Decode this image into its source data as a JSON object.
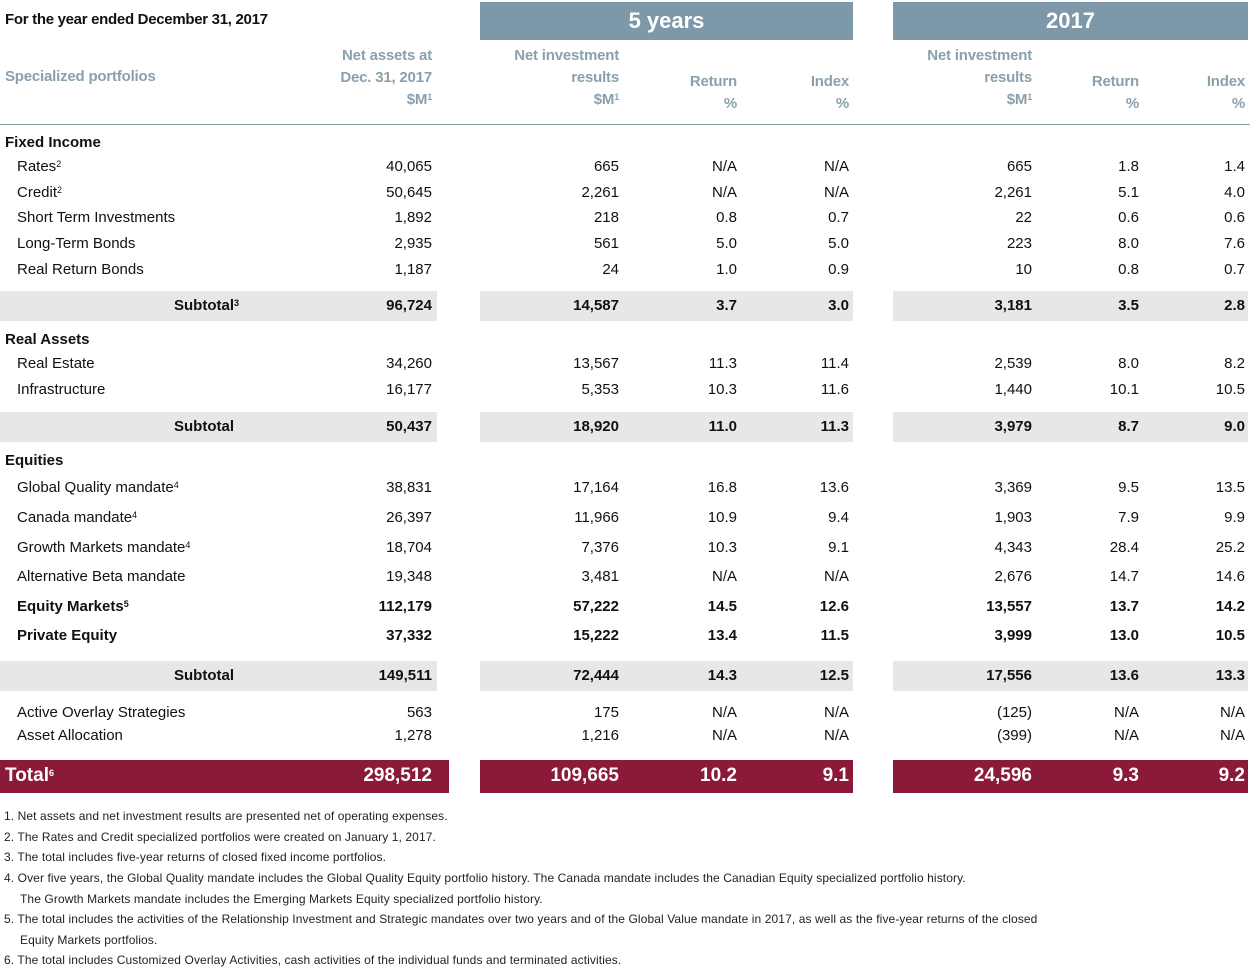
{
  "title": "For the year ended December 31, 2017",
  "bands": {
    "five_years": "5 years",
    "year_2017": "2017"
  },
  "colors": {
    "band": "#7d98a8",
    "subtotal_bg": "#e6e7e8",
    "total_bg": "#8b1a38",
    "header_text": "#8aa0ad"
  },
  "headers": {
    "portfolios": "Specialized portfolios",
    "net_assets": [
      "Net assets at",
      "Dec. 31, 2017",
      "$M"
    ],
    "net_assets_sup": "1",
    "five_results": [
      "Net investment",
      "results",
      "$M"
    ],
    "five_results_sup": "1",
    "five_return": [
      "Return",
      "%"
    ],
    "five_index": [
      "Index",
      "%"
    ],
    "y_results": [
      "Net investment",
      "results",
      "$M"
    ],
    "y_results_sup": "1",
    "y_return": [
      "Return",
      "%"
    ],
    "y_index": [
      "Index",
      "%"
    ]
  },
  "rows": [
    {
      "type": "section",
      "label": "Fixed Income"
    },
    {
      "type": "item",
      "label": "Rates",
      "sup": "2",
      "values": [
        "40,065",
        "665",
        "N/A",
        "N/A",
        "665",
        "1.8",
        "1.4"
      ]
    },
    {
      "type": "item",
      "label": "Credit",
      "sup": "2",
      "values": [
        "50,645",
        "2,261",
        "N/A",
        "N/A",
        "2,261",
        "5.1",
        "4.0"
      ]
    },
    {
      "type": "item",
      "label": "Short Term Investments",
      "values": [
        "1,892",
        "218",
        "0.8",
        "0.7",
        "22",
        "0.6",
        "0.6"
      ]
    },
    {
      "type": "item",
      "label": "Long-Term Bonds",
      "values": [
        "2,935",
        "561",
        "5.0",
        "5.0",
        "223",
        "8.0",
        "7.6"
      ]
    },
    {
      "type": "item",
      "label": "Real Return Bonds",
      "values": [
        "1,187",
        "24",
        "1.0",
        "0.9",
        "10",
        "0.8",
        "0.7"
      ]
    },
    {
      "type": "subtotal",
      "label": "Subtotal",
      "sup": "3",
      "values": [
        "96,724",
        "14,587",
        "3.7",
        "3.0",
        "3,181",
        "3.5",
        "2.8"
      ]
    },
    {
      "type": "section",
      "label": "Real Assets"
    },
    {
      "type": "item",
      "label": "Real Estate",
      "values": [
        "34,260",
        "13,567",
        "11.3",
        "11.4",
        "2,539",
        "8.0",
        "8.2"
      ]
    },
    {
      "type": "item",
      "label": "Infrastructure",
      "values": [
        "16,177",
        "5,353",
        "10.3",
        "11.6",
        "1,440",
        "10.1",
        "10.5"
      ]
    },
    {
      "type": "subtotal",
      "label": "Subtotal",
      "values": [
        "50,437",
        "18,920",
        "11.0",
        "11.3",
        "3,979",
        "8.7",
        "9.0"
      ]
    },
    {
      "type": "section",
      "label": "Equities"
    },
    {
      "type": "item",
      "label": "Global Quality mandate",
      "sup": "4",
      "values": [
        "38,831",
        "17,164",
        "16.8",
        "13.6",
        "3,369",
        "9.5",
        "13.5"
      ]
    },
    {
      "type": "item",
      "label": "Canada mandate",
      "sup": "4",
      "values": [
        "26,397",
        "11,966",
        "10.9",
        "9.4",
        "1,903",
        "7.9",
        "9.9"
      ]
    },
    {
      "type": "item",
      "label": "Growth Markets mandate",
      "sup": "4",
      "values": [
        "18,704",
        "7,376",
        "10.3",
        "9.1",
        "4,343",
        "28.4",
        "25.2"
      ]
    },
    {
      "type": "item",
      "label": "Alternative Beta mandate",
      "values": [
        "19,348",
        "3,481",
        "N/A",
        "N/A",
        "2,676",
        "14.7",
        "14.6"
      ]
    },
    {
      "type": "bolditem",
      "label": "Equity Markets",
      "sup": "5",
      "values": [
        "112,179",
        "57,222",
        "14.5",
        "12.6",
        "13,557",
        "13.7",
        "14.2"
      ]
    },
    {
      "type": "bolditem",
      "label": "Private Equity",
      "values": [
        "37,332",
        "15,222",
        "13.4",
        "11.5",
        "3,999",
        "13.0",
        "10.5"
      ]
    },
    {
      "type": "subtotal",
      "label": "Subtotal",
      "values": [
        "149,511",
        "72,444",
        "14.3",
        "12.5",
        "17,556",
        "13.6",
        "13.3"
      ]
    },
    {
      "type": "item",
      "label": "Active Overlay Strategies",
      "values": [
        "563",
        "175",
        "N/A",
        "N/A",
        "(125)",
        "N/A",
        "N/A"
      ]
    },
    {
      "type": "item",
      "label": "Asset Allocation",
      "values": [
        "1,278",
        "1,216",
        "N/A",
        "N/A",
        "(399)",
        "N/A",
        "N/A"
      ]
    },
    {
      "type": "total",
      "label": "Total",
      "sup": "6",
      "values": [
        "298,512",
        "109,665",
        "10.2",
        "9.1",
        "24,596",
        "9.3",
        "9.2"
      ]
    }
  ],
  "footnotes": [
    "1. Net assets and net investment results are presented net of operating expenses.",
    "2. The Rates and Credit specialized portfolios were created on January 1, 2017.",
    "3. The total includes five-year returns of closed fixed income portfolios.",
    "4. Over five years, the Global Quality mandate includes the Global Quality Equity portfolio history. The Canada mandate includes the Canadian Equity specialized portfolio history.",
    "   The Growth Markets mandate includes the Emerging Markets Equity specialized portfolio history.",
    "5. The total includes the activities of the Relationship Investment and Strategic mandates over two years and of the Global Value mandate in 2017, as well as the five-year returns of the closed",
    "   Equity Markets portfolios.",
    "6. The total includes Customized Overlay Activities, cash activities of the individual funds and terminated activities."
  ]
}
